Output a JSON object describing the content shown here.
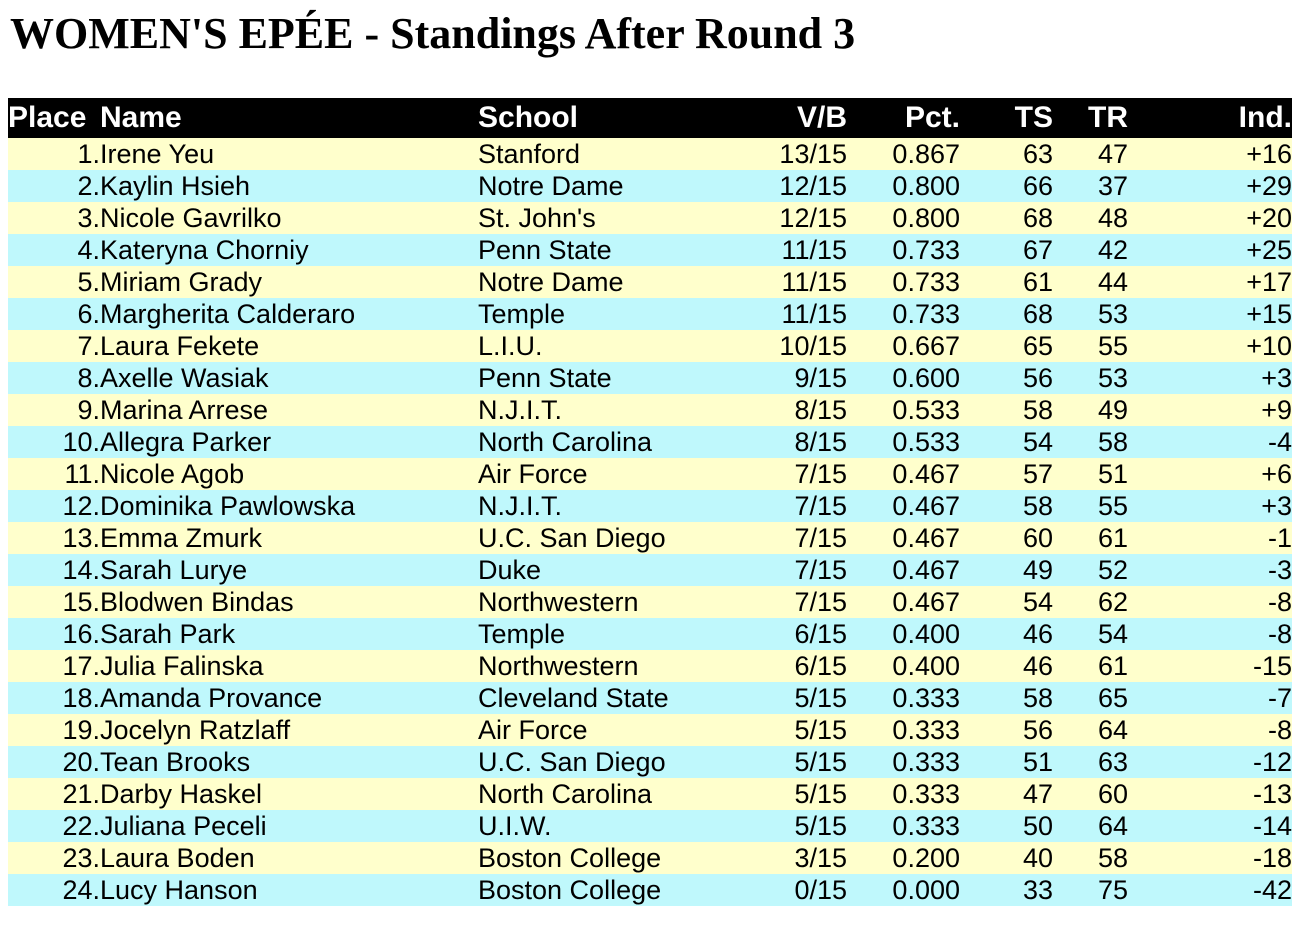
{
  "title": "WOMEN'S EPÉE - Standings After Round 3",
  "colors": {
    "header_bg": "#000000",
    "header_text": "#FFFFFF",
    "row_yellow": "#FFFFCC",
    "row_cyan": "#BFF8FC",
    "page_bg": "#FFFFFF",
    "text": "#000000"
  },
  "table": {
    "columns": [
      {
        "key": "place",
        "label": "Place"
      },
      {
        "key": "name",
        "label": "Name"
      },
      {
        "key": "school",
        "label": "School"
      },
      {
        "key": "vb",
        "label": "V/B"
      },
      {
        "key": "pct",
        "label": "Pct."
      },
      {
        "key": "ts",
        "label": "TS"
      },
      {
        "key": "tr",
        "label": "TR"
      },
      {
        "key": "ind",
        "label": "Ind."
      }
    ],
    "rows": [
      {
        "place": "1.",
        "name": "Irene Yeu",
        "school": "Stanford",
        "vb": "13/15",
        "pct": "0.867",
        "ts": "63",
        "tr": "47",
        "ind": "+16"
      },
      {
        "place": "2.",
        "name": "Kaylin Hsieh",
        "school": "Notre Dame",
        "vb": "12/15",
        "pct": "0.800",
        "ts": "66",
        "tr": "37",
        "ind": "+29"
      },
      {
        "place": "3.",
        "name": "Nicole Gavrilko",
        "school": "St. John's",
        "vb": "12/15",
        "pct": "0.800",
        "ts": "68",
        "tr": "48",
        "ind": "+20"
      },
      {
        "place": "4.",
        "name": "Kateryna Chorniy",
        "school": "Penn State",
        "vb": "11/15",
        "pct": "0.733",
        "ts": "67",
        "tr": "42",
        "ind": "+25"
      },
      {
        "place": "5.",
        "name": "Miriam Grady",
        "school": "Notre Dame",
        "vb": "11/15",
        "pct": "0.733",
        "ts": "61",
        "tr": "44",
        "ind": "+17"
      },
      {
        "place": "6.",
        "name": "Margherita Calderaro",
        "school": "Temple",
        "vb": "11/15",
        "pct": "0.733",
        "ts": "68",
        "tr": "53",
        "ind": "+15"
      },
      {
        "place": "7.",
        "name": "Laura Fekete",
        "school": "L.I.U.",
        "vb": "10/15",
        "pct": "0.667",
        "ts": "65",
        "tr": "55",
        "ind": "+10"
      },
      {
        "place": "8.",
        "name": "Axelle Wasiak",
        "school": "Penn State",
        "vb": "9/15",
        "pct": "0.600",
        "ts": "56",
        "tr": "53",
        "ind": "+3"
      },
      {
        "place": "9.",
        "name": "Marina Arrese",
        "school": "N.J.I.T.",
        "vb": "8/15",
        "pct": "0.533",
        "ts": "58",
        "tr": "49",
        "ind": "+9"
      },
      {
        "place": "10.",
        "name": "Allegra Parker",
        "school": "North Carolina",
        "vb": "8/15",
        "pct": "0.533",
        "ts": "54",
        "tr": "58",
        "ind": "-4"
      },
      {
        "place": "11.",
        "name": "Nicole Agob",
        "school": "Air Force",
        "vb": "7/15",
        "pct": "0.467",
        "ts": "57",
        "tr": "51",
        "ind": "+6"
      },
      {
        "place": "12.",
        "name": "Dominika Pawlowska",
        "school": "N.J.I.T.",
        "vb": "7/15",
        "pct": "0.467",
        "ts": "58",
        "tr": "55",
        "ind": "+3"
      },
      {
        "place": "13.",
        "name": "Emma Zmurk",
        "school": "U.C. San Diego",
        "vb": "7/15",
        "pct": "0.467",
        "ts": "60",
        "tr": "61",
        "ind": "-1"
      },
      {
        "place": "14.",
        "name": "Sarah Lurye",
        "school": "Duke",
        "vb": "7/15",
        "pct": "0.467",
        "ts": "49",
        "tr": "52",
        "ind": "-3"
      },
      {
        "place": "15.",
        "name": "Blodwen Bindas",
        "school": "Northwestern",
        "vb": "7/15",
        "pct": "0.467",
        "ts": "54",
        "tr": "62",
        "ind": "-8"
      },
      {
        "place": "16.",
        "name": "Sarah Park",
        "school": "Temple",
        "vb": "6/15",
        "pct": "0.400",
        "ts": "46",
        "tr": "54",
        "ind": "-8"
      },
      {
        "place": "17.",
        "name": "Julia Falinska",
        "school": "Northwestern",
        "vb": "6/15",
        "pct": "0.400",
        "ts": "46",
        "tr": "61",
        "ind": "-15"
      },
      {
        "place": "18.",
        "name": "Amanda Provance",
        "school": "Cleveland State",
        "vb": "5/15",
        "pct": "0.333",
        "ts": "58",
        "tr": "65",
        "ind": "-7"
      },
      {
        "place": "19.",
        "name": "Jocelyn Ratzlaff",
        "school": "Air Force",
        "vb": "5/15",
        "pct": "0.333",
        "ts": "56",
        "tr": "64",
        "ind": "-8"
      },
      {
        "place": "20.",
        "name": "Tean Brooks",
        "school": "U.C. San Diego",
        "vb": "5/15",
        "pct": "0.333",
        "ts": "51",
        "tr": "63",
        "ind": "-12"
      },
      {
        "place": "21.",
        "name": "Darby Haskel",
        "school": "North Carolina",
        "vb": "5/15",
        "pct": "0.333",
        "ts": "47",
        "tr": "60",
        "ind": "-13"
      },
      {
        "place": "22.",
        "name": "Juliana Peceli",
        "school": "U.I.W.",
        "vb": "5/15",
        "pct": "0.333",
        "ts": "50",
        "tr": "64",
        "ind": "-14"
      },
      {
        "place": "23.",
        "name": "Laura Boden",
        "school": "Boston College",
        "vb": "3/15",
        "pct": "0.200",
        "ts": "40",
        "tr": "58",
        "ind": "-18"
      },
      {
        "place": "24.",
        "name": "Lucy Hanson",
        "school": "Boston College",
        "vb": "0/15",
        "pct": "0.000",
        "ts": "33",
        "tr": "75",
        "ind": "-42"
      }
    ]
  }
}
